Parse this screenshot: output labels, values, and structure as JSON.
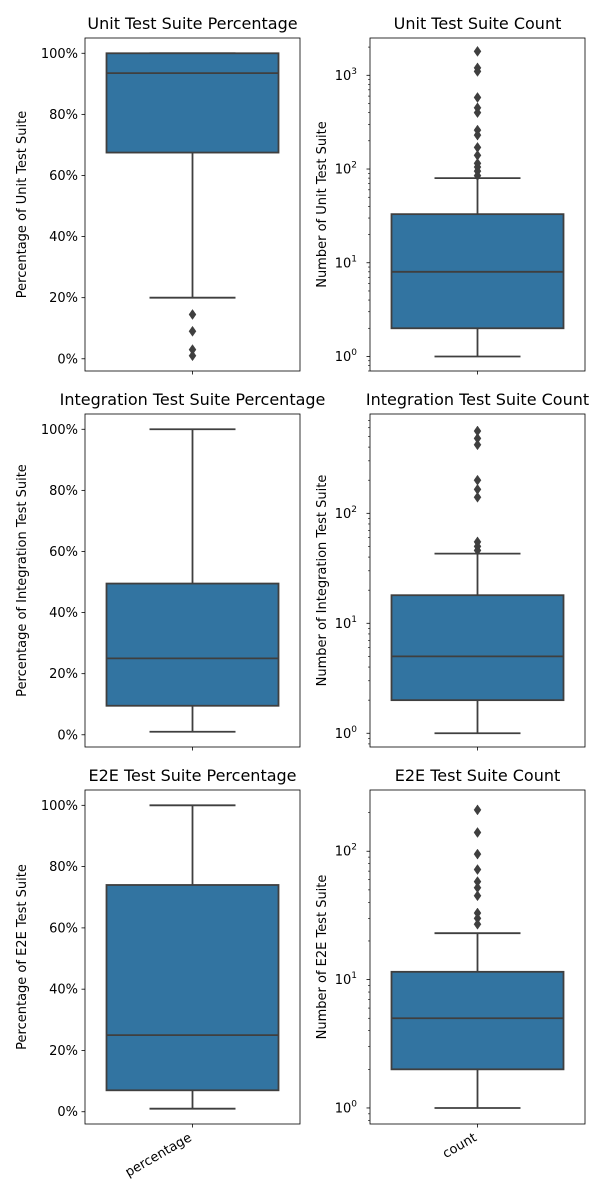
{
  "colors": {
    "box": "#3274a1",
    "line": "#3f3f3f",
    "axis": "#000000",
    "background": "#ffffff"
  },
  "chart_data": [
    {
      "type": "box",
      "title": "Unit Test Suite Percentage",
      "ylabel": "Percentage of Unit Test Suite",
      "scale": "linear",
      "ylim": [
        -0.04,
        1.05
      ],
      "yticks": [
        0,
        0.2,
        0.4,
        0.6,
        0.8,
        1.0
      ],
      "ytick_labels": [
        "0%",
        "20%",
        "40%",
        "60%",
        "80%",
        "100%"
      ],
      "box": {
        "q1": 0.675,
        "median": 0.935,
        "q3": 1.0,
        "whisker_low": 0.2,
        "whisker_high": 1.0
      },
      "outliers": [
        0.145,
        0.09,
        0.03,
        0.01
      ],
      "xtick_label": ""
    },
    {
      "type": "box",
      "title": "Unit Test Suite Count",
      "ylabel": "Number of Unit Test Suite",
      "scale": "log",
      "ylim": [
        0.7,
        2500
      ],
      "yticks": [
        1,
        10,
        100,
        1000
      ],
      "ytick_labels": [
        "10",
        "10",
        "10",
        "10"
      ],
      "ytick_exponents": [
        "0",
        "1",
        "2",
        "3"
      ],
      "box": {
        "q1": 2,
        "median": 8,
        "q3": 33,
        "whisker_low": 1,
        "whisker_high": 80
      },
      "outliers": [
        1800,
        1200,
        1100,
        580,
        450,
        400,
        260,
        230,
        170,
        140,
        115,
        105,
        95,
        85
      ],
      "xtick_label": ""
    },
    {
      "type": "box",
      "title": "Integration Test Suite Percentage",
      "ylabel": "Percentage of Integration Test Suite",
      "scale": "linear",
      "ylim": [
        -0.04,
        1.05
      ],
      "yticks": [
        0,
        0.2,
        0.4,
        0.6,
        0.8,
        1.0
      ],
      "ytick_labels": [
        "0%",
        "20%",
        "40%",
        "60%",
        "80%",
        "100%"
      ],
      "box": {
        "q1": 0.095,
        "median": 0.25,
        "q3": 0.495,
        "whisker_low": 0.01,
        "whisker_high": 1.0
      },
      "outliers": [],
      "xtick_label": ""
    },
    {
      "type": "box",
      "title": "Integration Test Suite Count",
      "ylabel": "Number of Integration Test Suite",
      "scale": "log",
      "ylim": [
        0.75,
        800
      ],
      "yticks": [
        1,
        10,
        100
      ],
      "ytick_labels": [
        "10",
        "10",
        "10"
      ],
      "ytick_exponents": [
        "0",
        "1",
        "2"
      ],
      "box": {
        "q1": 2,
        "median": 5,
        "q3": 18,
        "whisker_low": 1,
        "whisker_high": 43
      },
      "outliers": [
        560,
        480,
        420,
        200,
        165,
        140,
        55,
        50,
        46
      ],
      "xtick_label": ""
    },
    {
      "type": "box",
      "title": "E2E Test Suite Percentage",
      "ylabel": "Percentage of E2E Test Suite",
      "scale": "linear",
      "ylim": [
        -0.04,
        1.05
      ],
      "yticks": [
        0,
        0.2,
        0.4,
        0.6,
        0.8,
        1.0
      ],
      "ytick_labels": [
        "0%",
        "20%",
        "40%",
        "60%",
        "80%",
        "100%"
      ],
      "box": {
        "q1": 0.07,
        "median": 0.25,
        "q3": 0.74,
        "whisker_low": 0.01,
        "whisker_high": 1.0
      },
      "outliers": [],
      "xtick_label": "percentage"
    },
    {
      "type": "box",
      "title": "E2E Test Suite Count",
      "ylabel": "Number of E2E Test Suite",
      "scale": "log",
      "ylim": [
        0.75,
        300
      ],
      "yticks": [
        1,
        10,
        100
      ],
      "ytick_labels": [
        "10",
        "10",
        "10"
      ],
      "ytick_exponents": [
        "0",
        "1",
        "2"
      ],
      "box": {
        "q1": 2,
        "median": 5,
        "q3": 11.5,
        "whisker_low": 1,
        "whisker_high": 23
      },
      "outliers": [
        210,
        140,
        95,
        72,
        58,
        52,
        45,
        33,
        30,
        27
      ],
      "xtick_label": "count"
    }
  ]
}
